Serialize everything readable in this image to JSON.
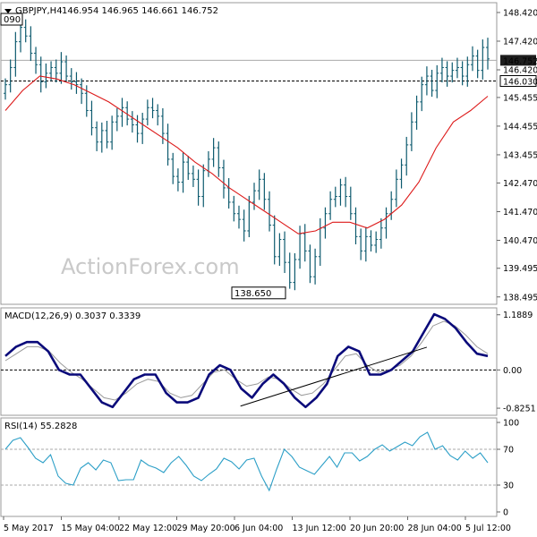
{
  "chart_data": [
    {
      "type": "candlestick",
      "symbol_label": "GBPJPY,H4",
      "ohlc_header": "146.954 146.965 146.661 146.752",
      "watermark": "ActionForex.com",
      "top_left_value": "090",
      "ylim": [
        138.3,
        148.7
      ],
      "y_ticks": [
        "148.420",
        "147.420",
        "146.420",
        "145.455",
        "144.455",
        "143.455",
        "142.470",
        "141.470",
        "140.470",
        "139.495",
        "138.495"
      ],
      "price_tag": {
        "label": "146.752",
        "value": 146.752
      },
      "level_line": {
        "label": "146.030",
        "value": 146.03
      },
      "low_label": {
        "label": "138.650",
        "value": 138.65
      },
      "close_series": [
        145.9,
        146.5,
        147.4,
        147.9,
        147.6,
        147.0,
        146.6,
        146.0,
        146.3,
        146.5,
        146.3,
        146.7,
        146.2,
        146.0,
        145.9,
        145.6,
        145.0,
        144.4,
        143.9,
        144.3,
        143.9,
        144.6,
        144.8,
        145.1,
        144.7,
        144.5,
        144.2,
        144.7,
        145.1,
        145.0,
        144.8,
        144.2,
        143.3,
        142.7,
        142.5,
        143.2,
        142.8,
        142.6,
        142.0,
        142.9,
        143.3,
        143.7,
        143.0,
        142.3,
        141.8,
        141.4,
        141.2,
        140.8,
        141.8,
        142.2,
        142.6,
        141.9,
        141.0,
        139.9,
        140.5,
        139.7,
        139.0,
        139.8,
        140.7,
        140.1,
        139.2,
        139.9,
        140.9,
        141.4,
        141.9,
        142.0,
        142.4,
        142.0,
        141.4,
        140.6,
        140.1,
        140.6,
        140.3,
        140.5,
        140.9,
        141.4,
        141.9,
        142.6,
        143.1,
        143.8,
        144.6,
        145.3,
        145.9,
        146.2,
        145.7,
        146.3,
        146.5,
        146.2,
        146.4,
        146.5,
        146.2,
        146.6,
        146.9,
        146.4,
        147.2,
        146.8
      ],
      "moving_average": [
        145.0,
        145.7,
        146.2,
        146.1,
        145.9,
        145.6,
        145.3,
        144.9,
        144.5,
        144.1,
        143.7,
        143.2,
        142.8,
        142.3,
        141.9,
        141.5,
        141.1,
        140.7,
        140.8,
        141.1,
        141.1,
        140.9,
        141.2,
        141.7,
        142.5,
        143.7,
        144.6,
        145.0,
        145.5
      ],
      "x_tick_labels": [
        "5 May 2017",
        "15 May 04:00",
        "22 May 12:00",
        "29 May 20:00",
        "6 Jun 04:00",
        "13 Jun 12:00",
        "20 Jun 20:00",
        "28 Jun 04:00",
        "5 Jul 12:00"
      ]
    },
    {
      "type": "line",
      "title": "MACD(12,26,9) 0.3037 0.3339",
      "ylim": [
        -0.92,
        1.28
      ],
      "y_ticks": [
        "1.1889",
        "0.00",
        "-0.8251"
      ],
      "zero_line": 0,
      "series": [
        {
          "values": [
            0.3,
            0.5,
            0.6,
            0.6,
            0.4,
            0.0,
            -0.1,
            -0.1,
            -0.4,
            -0.7,
            -0.8,
            -0.5,
            -0.2,
            -0.1,
            -0.1,
            -0.5,
            -0.7,
            -0.7,
            -0.6,
            -0.1,
            0.1,
            0.0,
            -0.4,
            -0.6,
            -0.3,
            -0.1,
            -0.3,
            -0.6,
            -0.8,
            -0.6,
            -0.3,
            0.3,
            0.5,
            0.4,
            -0.1,
            -0.1,
            0.0,
            0.2,
            0.4,
            0.8,
            1.2,
            1.1,
            0.9,
            0.6,
            0.35,
            0.3
          ]
        },
        {
          "values": [
            0.2,
            0.35,
            0.5,
            0.5,
            0.4,
            0.15,
            -0.05,
            -0.2,
            -0.4,
            -0.6,
            -0.65,
            -0.5,
            -0.3,
            -0.2,
            -0.25,
            -0.5,
            -0.6,
            -0.55,
            -0.3,
            -0.05,
            0.0,
            -0.2,
            -0.35,
            -0.3,
            -0.15,
            -0.2,
            -0.4,
            -0.55,
            -0.5,
            -0.3,
            0.0,
            0.3,
            0.35,
            0.1,
            -0.05,
            0.0,
            0.1,
            0.3,
            0.6,
            0.95,
            1.05,
            0.95,
            0.75,
            0.5,
            0.35
          ]
        }
      ],
      "trendline": {
        "from": [
          46.3,
          -0.78
        ],
        "to": [
          83,
          0.49
        ]
      }
    },
    {
      "type": "line",
      "title": "RSI(14) 55.2828",
      "ylim": [
        0,
        100
      ],
      "y_ticks": [
        "100",
        "70",
        "30",
        "0"
      ],
      "levels": [
        70,
        30
      ],
      "values": [
        70,
        80,
        83,
        72,
        60,
        55,
        64,
        40,
        32,
        30,
        49,
        55,
        47,
        58,
        55,
        35,
        36,
        36,
        58,
        52,
        49,
        44,
        55,
        62,
        52,
        40,
        35,
        42,
        48,
        60,
        56,
        48,
        58,
        60,
        40,
        24,
        48,
        70,
        62,
        50,
        46,
        42,
        52,
        62,
        50,
        66,
        66,
        57,
        62,
        70,
        75,
        68,
        73,
        78,
        74,
        84,
        89,
        70,
        74,
        63,
        58,
        68,
        60,
        66,
        55
      ]
    }
  ]
}
